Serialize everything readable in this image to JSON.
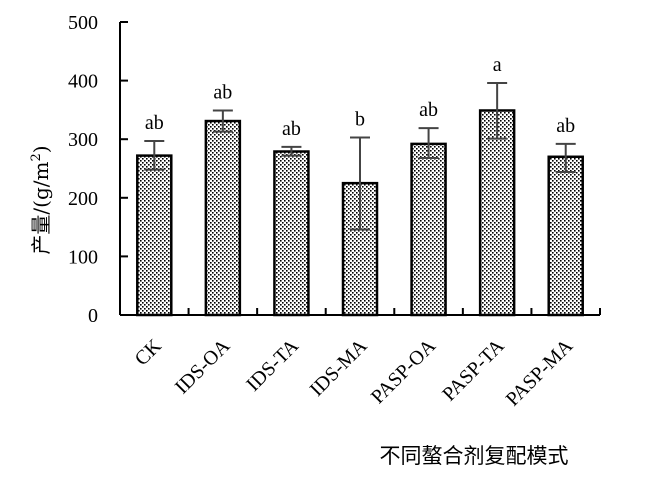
{
  "chart_data": {
    "type": "bar",
    "categories": [
      "CK",
      "IDS-OA",
      "IDS-TA",
      "IDS-MA",
      "PASP-OA",
      "PASP-TA",
      "PASP-MA"
    ],
    "values": [
      272,
      331,
      279,
      225,
      292,
      349,
      270
    ],
    "errors": [
      [
        248,
        297
      ],
      [
        313,
        349
      ],
      [
        272,
        287
      ],
      [
        146,
        303
      ],
      [
        268,
        319
      ],
      [
        301,
        396
      ],
      [
        244,
        292
      ]
    ],
    "significance": [
      "ab",
      "ab",
      "ab",
      "b",
      "ab",
      "a",
      "ab"
    ],
    "ylabel_main": "产量/(g/m",
    "ylabel_sup": "2",
    "ylabel_end": ")",
    "xlabel": "不同螯合剂复配模式",
    "ylim": [
      0,
      500
    ],
    "yticks": [
      0,
      100,
      200,
      300,
      400,
      500
    ],
    "bar_fill": "dotted-pattern",
    "bar_color": "#000000",
    "grid": false
  }
}
